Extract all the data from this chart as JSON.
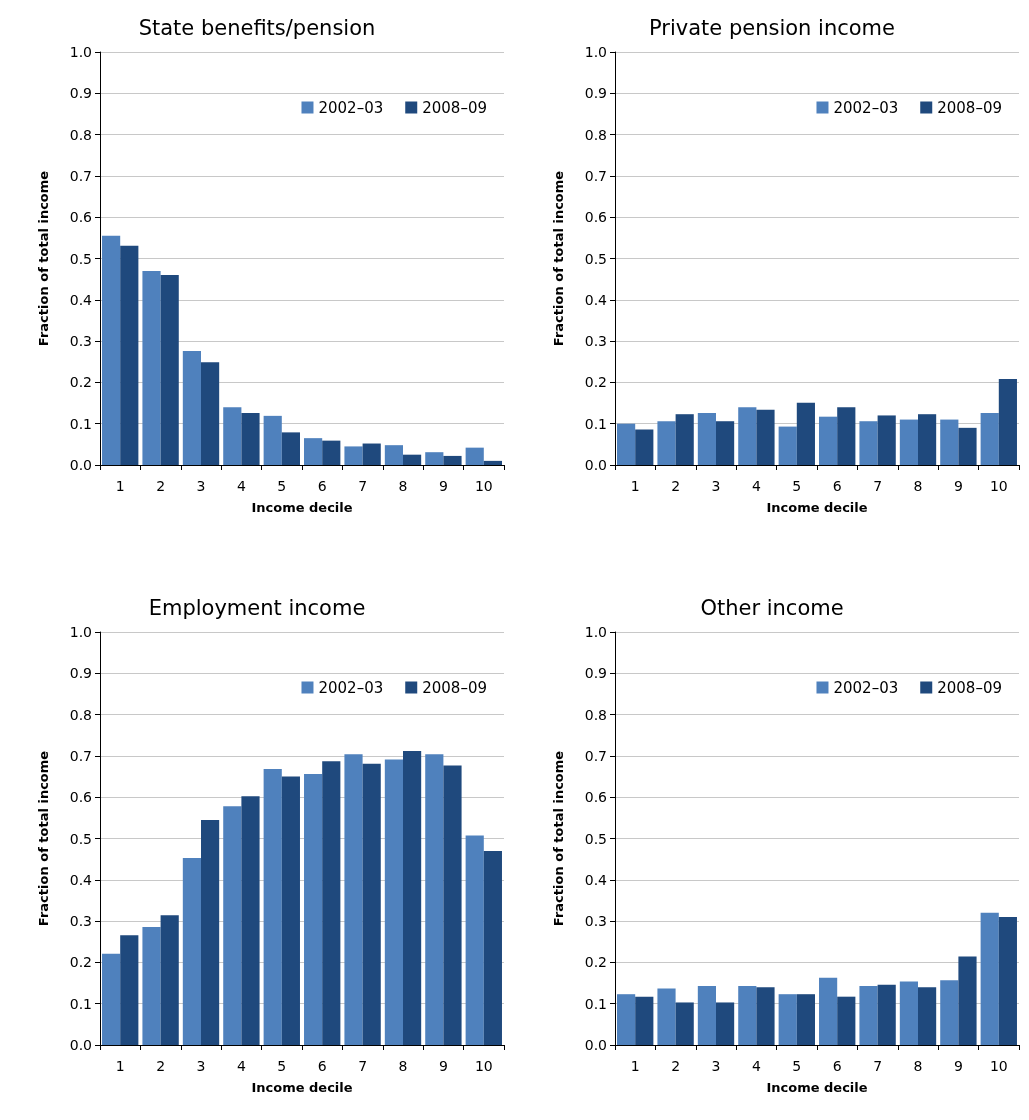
{
  "chart_data": [
    {
      "type": "bar",
      "title": "State benefits/pension",
      "xlabel": "Income decile",
      "ylabel": "Fraction of total income",
      "categories": [
        "1",
        "2",
        "3",
        "4",
        "5",
        "6",
        "7",
        "8",
        "9",
        "10"
      ],
      "series": [
        {
          "name": "2002–03",
          "color": "#4f81bd",
          "values": [
            0.555,
            0.47,
            0.276,
            0.14,
            0.119,
            0.065,
            0.045,
            0.048,
            0.031,
            0.042
          ]
        },
        {
          "name": "2008–09",
          "color": "#1f497d",
          "values": [
            0.531,
            0.46,
            0.249,
            0.126,
            0.079,
            0.059,
            0.052,
            0.025,
            0.022,
            0.01
          ]
        }
      ],
      "ylim": [
        0,
        1
      ],
      "yticks": [
        {
          "value": 0,
          "label": "0.0"
        },
        {
          "value": 0.1,
          "label": "0.1"
        },
        {
          "value": 0.2,
          "label": "0.2"
        },
        {
          "value": 0.3,
          "label": "0.3"
        },
        {
          "value": 0.4,
          "label": "0.4"
        },
        {
          "value": 0.5,
          "label": "0.5"
        },
        {
          "value": 0.6,
          "label": "0.6"
        },
        {
          "value": 0.7,
          "label": "0.7"
        },
        {
          "value": 0.8,
          "label": "0.8"
        },
        {
          "value": 0.9,
          "label": "0.9"
        },
        {
          "value": 1,
          "label": "1.0"
        }
      ],
      "grid": "y",
      "legend": "top right"
    },
    {
      "type": "bar",
      "title": "Private pension income",
      "xlabel": "Income decile",
      "ylabel": "Fraction of total income",
      "categories": [
        "1",
        "2",
        "3",
        "4",
        "5",
        "6",
        "7",
        "8",
        "9",
        "10"
      ],
      "series": [
        {
          "name": "2002–03",
          "color": "#4f81bd",
          "values": [
            0.1,
            0.106,
            0.126,
            0.14,
            0.093,
            0.117,
            0.106,
            0.11,
            0.11,
            0.126
          ]
        },
        {
          "name": "2008–09",
          "color": "#1f497d",
          "values": [
            0.086,
            0.123,
            0.106,
            0.134,
            0.151,
            0.14,
            0.12,
            0.123,
            0.09,
            0.208
          ]
        }
      ],
      "ylim": [
        0,
        1
      ],
      "yticks": [
        {
          "value": 0,
          "label": "0.0"
        },
        {
          "value": 0.1,
          "label": "0.1"
        },
        {
          "value": 0.2,
          "label": "0.2"
        },
        {
          "value": 0.3,
          "label": "0.3"
        },
        {
          "value": 0.4,
          "label": "0.4"
        },
        {
          "value": 0.5,
          "label": "0.5"
        },
        {
          "value": 0.6,
          "label": "0.6"
        },
        {
          "value": 0.7,
          "label": "0.7"
        },
        {
          "value": 0.8,
          "label": "0.8"
        },
        {
          "value": 0.9,
          "label": "0.9"
        },
        {
          "value": 1,
          "label": "1.0"
        }
      ],
      "grid": "y",
      "legend": "top right"
    },
    {
      "type": "bar",
      "title": "Employment income",
      "xlabel": "Income decile",
      "ylabel": "Fraction of total income",
      "categories": [
        "1",
        "2",
        "3",
        "4",
        "5",
        "6",
        "7",
        "8",
        "9",
        "10"
      ],
      "series": [
        {
          "name": "2002–03",
          "color": "#4f81bd",
          "values": [
            0.221,
            0.286,
            0.453,
            0.578,
            0.668,
            0.656,
            0.704,
            0.691,
            0.704,
            0.507
          ]
        },
        {
          "name": "2008–09",
          "color": "#1f497d",
          "values": [
            0.266,
            0.314,
            0.545,
            0.602,
            0.65,
            0.687,
            0.681,
            0.712,
            0.677,
            0.47
          ]
        }
      ],
      "ylim": [
        0,
        1
      ],
      "yticks": [
        {
          "value": 0,
          "label": "0.0"
        },
        {
          "value": 0.1,
          "label": "0.1"
        },
        {
          "value": 0.2,
          "label": "0.2"
        },
        {
          "value": 0.3,
          "label": "0.3"
        },
        {
          "value": 0.4,
          "label": "0.4"
        },
        {
          "value": 0.5,
          "label": "0.5"
        },
        {
          "value": 0.6,
          "label": "0.6"
        },
        {
          "value": 0.7,
          "label": "0.7"
        },
        {
          "value": 0.8,
          "label": "0.8"
        },
        {
          "value": 0.9,
          "label": "0.9"
        },
        {
          "value": 1,
          "label": "1.0"
        }
      ],
      "grid": "y",
      "legend": "top right"
    },
    {
      "type": "bar",
      "title": "Other income",
      "xlabel": "Income decile",
      "ylabel": "Fraction of total income",
      "categories": [
        "1",
        "2",
        "3",
        "4",
        "5",
        "6",
        "7",
        "8",
        "9",
        "10"
      ],
      "series": [
        {
          "name": "2002–03",
          "color": "#4f81bd",
          "values": [
            0.123,
            0.137,
            0.143,
            0.143,
            0.123,
            0.163,
            0.143,
            0.154,
            0.157,
            0.32
          ]
        },
        {
          "name": "2008–09",
          "color": "#1f497d",
          "values": [
            0.117,
            0.103,
            0.103,
            0.14,
            0.123,
            0.117,
            0.146,
            0.14,
            0.214,
            0.31
          ]
        }
      ],
      "ylim": [
        0,
        1
      ],
      "yticks": [
        {
          "value": 0,
          "label": "0.0"
        },
        {
          "value": 0.1,
          "label": "0.1"
        },
        {
          "value": 0.2,
          "label": "0.2"
        },
        {
          "value": 0.3,
          "label": "0.3"
        },
        {
          "value": 0.4,
          "label": "0.4"
        },
        {
          "value": 0.5,
          "label": "0.5"
        },
        {
          "value": 0.6,
          "label": "0.6"
        },
        {
          "value": 0.7,
          "label": "0.7"
        },
        {
          "value": 0.8,
          "label": "0.8"
        },
        {
          "value": 0.9,
          "label": "0.9"
        },
        {
          "value": 1,
          "label": "1.0"
        }
      ],
      "grid": "y",
      "legend": "top right"
    }
  ]
}
